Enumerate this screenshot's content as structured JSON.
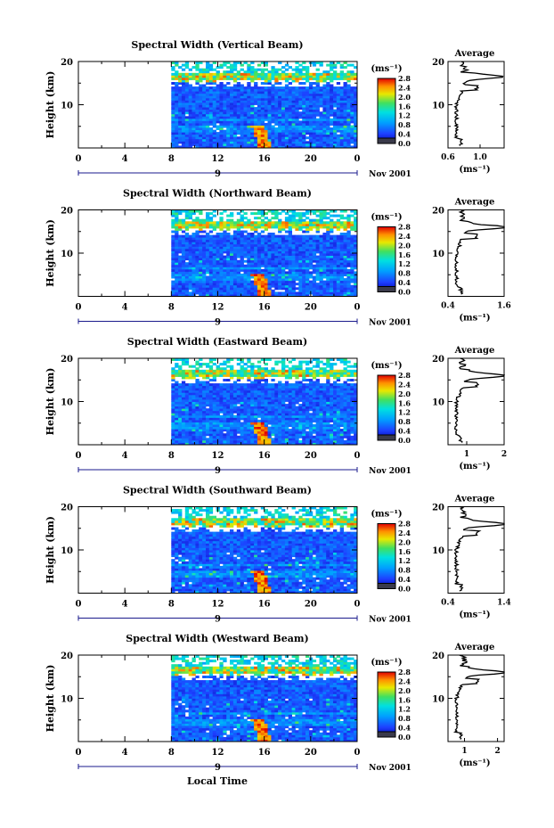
{
  "figure": {
    "x_label": "Local Time",
    "x_ticks": [
      "0",
      "4",
      "8",
      "12",
      "16",
      "20",
      "0"
    ],
    "day_label": "9",
    "date_label": "Nov 2001",
    "y_label": "Height (km)",
    "y_ticks": [
      "10",
      "20"
    ],
    "colorbar_unit": "(ms⁻¹)",
    "colorbar_ticks": [
      "0.0",
      "0.4",
      "0.8",
      "1.2",
      "1.6",
      "2.0",
      "2.4",
      "2.8"
    ],
    "avg_title": "Average",
    "avg_unit": "(ms⁻¹)"
  },
  "chart_data": [
    {
      "type": "heatmap",
      "title": "Spectral Width (Vertical Beam)",
      "xlabel": "Local Time",
      "ylabel": "Height (km)",
      "xlim": [
        0,
        24
      ],
      "ylim": [
        0,
        20
      ],
      "data_start_hour": 8,
      "colorbar_label": "(ms⁻¹)",
      "colorbar_range": [
        0.0,
        2.8
      ],
      "average_profile": {
        "title": "Average",
        "xlabel": "(ms⁻¹)",
        "xlim": [
          0.6,
          1.3
        ],
        "x_ticks": [
          "0.6",
          "1.0"
        ],
        "peak_value": 1.2,
        "peak_height_km": 16.5
      }
    },
    {
      "type": "heatmap",
      "title": "Spectral Width (Northward Beam)",
      "xlabel": "Local Time",
      "ylabel": "Height (km)",
      "xlim": [
        0,
        24
      ],
      "ylim": [
        0,
        20
      ],
      "data_start_hour": 8,
      "colorbar_label": "(ms⁻¹)",
      "colorbar_range": [
        0.0,
        2.8
      ],
      "average_profile": {
        "title": "Average",
        "xlabel": "(ms⁻¹)",
        "xlim": [
          0.4,
          1.6
        ],
        "x_ticks": [
          "0.4",
          "1.6"
        ],
        "peak_value": 1.5,
        "peak_height_km": 16
      }
    },
    {
      "type": "heatmap",
      "title": "Spectral Width (Eastward Beam)",
      "xlabel": "Local Time",
      "ylabel": "Height (km)",
      "xlim": [
        0,
        24
      ],
      "ylim": [
        0,
        20
      ],
      "data_start_hour": 8,
      "colorbar_label": "(ms⁻¹)",
      "colorbar_range": [
        0.0,
        2.8
      ],
      "average_profile": {
        "title": "Average",
        "xlabel": "(ms⁻¹)",
        "xlim": [
          0.5,
          2.0
        ],
        "x_ticks": [
          "1",
          "2"
        ],
        "peak_value": 1.9,
        "peak_height_km": 16
      }
    },
    {
      "type": "heatmap",
      "title": "Spectral Width (Southward Beam)",
      "xlabel": "Local Time",
      "ylabel": "Height (km)",
      "xlim": [
        0,
        24
      ],
      "ylim": [
        0,
        20
      ],
      "data_start_hour": 8,
      "colorbar_label": "(ms⁻¹)",
      "colorbar_range": [
        0.0,
        2.8
      ],
      "average_profile": {
        "title": "Average",
        "xlabel": "(ms⁻¹)",
        "xlim": [
          0.4,
          1.4
        ],
        "x_ticks": [
          "0.4",
          "1.4"
        ],
        "peak_value": 1.35,
        "peak_height_km": 16
      }
    },
    {
      "type": "heatmap",
      "title": "Spectral Width (Westward Beam)",
      "xlabel": "Local Time",
      "ylabel": "Height (km)",
      "xlim": [
        0,
        24
      ],
      "ylim": [
        0,
        20
      ],
      "data_start_hour": 8,
      "colorbar_label": "(ms⁻¹)",
      "colorbar_range": [
        0.0,
        2.8
      ],
      "average_profile": {
        "title": "Average",
        "xlabel": "(ms⁻¹)",
        "xlim": [
          0.5,
          2.2
        ],
        "x_ticks": [
          "1",
          "2"
        ],
        "peak_value": 2.1,
        "peak_height_km": 16
      }
    }
  ]
}
